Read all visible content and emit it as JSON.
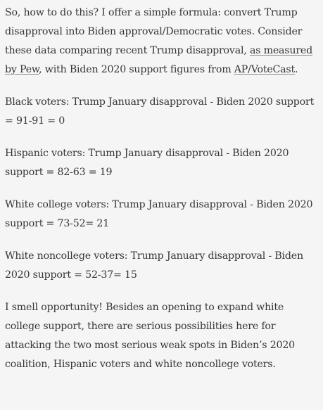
{
  "article": {
    "intro": {
      "before_link": "So, how to do this? I offer a simple formula: convert Trump disapproval into Biden approval/Democratic votes. Consider these data comparing recent Trump disapproval, ",
      "link1": "as measured by Pew",
      "middle": ", with Biden 2020 support figures from ",
      "link2": "AP/VoteCast",
      "after": "."
    },
    "rows": [
      "Black voters: Trump January disapproval - Biden 2020 support = 91-91 = 0",
      "Hispanic voters: Trump January disapproval - Biden 2020 support = 82-63 = 19",
      "White college voters: Trump January disapproval - Biden 2020 support = 73-52= 21",
      "White noncollege voters: Trump January disapproval - Biden 2020 support = 52-37= 15"
    ],
    "closing": "I smell opportunity! Besides an opening to expand white college support, there are serious possibilities here for attacking the two most serious weak spots in Biden’s 2020 coalition, Hispanic voters and white noncollege voters."
  }
}
